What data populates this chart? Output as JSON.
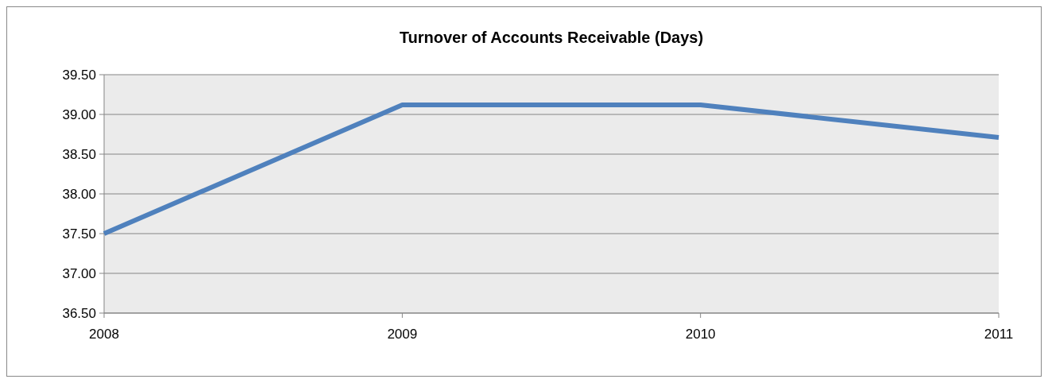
{
  "chart_data": {
    "type": "line",
    "title": "Turnover of Accounts Receivable (Days)",
    "categories": [
      "2008",
      "2009",
      "2010",
      "2011"
    ],
    "series": [
      {
        "color": "#4f81bd",
        "values": [
          37.5,
          39.12,
          39.12,
          38.71
        ]
      }
    ],
    "ylim": [
      36.5,
      39.5
    ],
    "yticks": [
      {
        "value": 36.5,
        "label": "36.50"
      },
      {
        "value": 37,
        "label": "37.00"
      },
      {
        "value": 37.5,
        "label": "37.50"
      },
      {
        "value": 38,
        "label": "38.00"
      },
      {
        "value": 38.5,
        "label": "38.50"
      },
      {
        "value": 39,
        "label": "39.00"
      },
      {
        "value": 39.5,
        "label": "39.50"
      }
    ],
    "grid": "y",
    "marker": "none",
    "line_style": "solid"
  }
}
